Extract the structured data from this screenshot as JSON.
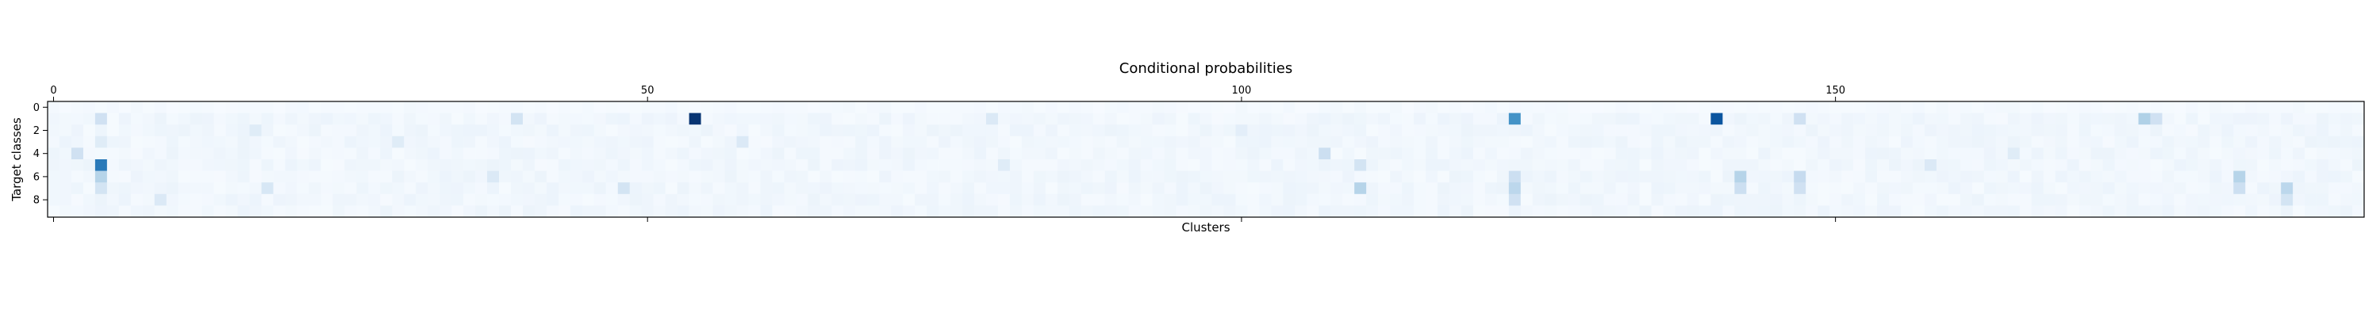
{
  "chart_data": {
    "type": "heatmap",
    "title": "Conditional probabilities",
    "xlabel": "Clusters",
    "ylabel": "Target classes",
    "n_rows": 10,
    "n_cols": 195,
    "x_ticks_top": [
      "0",
      "50",
      "100",
      "150"
    ],
    "x_tick_values": [
      0,
      50,
      100,
      150
    ],
    "y_ticks": [
      "0",
      "2",
      "4",
      "6",
      "8"
    ],
    "y_tick_values": [
      0,
      2,
      4,
      6,
      8
    ],
    "colormap": "Blues",
    "value_range": [
      0,
      1
    ],
    "grid": false,
    "base_value": 0.03,
    "highlights": [
      {
        "row": 1,
        "col": 54,
        "value": 0.98
      },
      {
        "row": 1,
        "col": 123,
        "value": 0.62
      },
      {
        "row": 1,
        "col": 140,
        "value": 0.86
      },
      {
        "row": 1,
        "col": 4,
        "value": 0.2
      },
      {
        "row": 1,
        "col": 39,
        "value": 0.18
      },
      {
        "row": 1,
        "col": 79,
        "value": 0.14
      },
      {
        "row": 1,
        "col": 147,
        "value": 0.2
      },
      {
        "row": 1,
        "col": 176,
        "value": 0.32
      },
      {
        "row": 1,
        "col": 177,
        "value": 0.2
      },
      {
        "row": 5,
        "col": 4,
        "value": 0.72
      },
      {
        "row": 6,
        "col": 4,
        "value": 0.3
      },
      {
        "row": 7,
        "col": 4,
        "value": 0.18
      },
      {
        "row": 4,
        "col": 2,
        "value": 0.2
      },
      {
        "row": 3,
        "col": 4,
        "value": 0.12
      },
      {
        "row": 4,
        "col": 107,
        "value": 0.22
      },
      {
        "row": 5,
        "col": 110,
        "value": 0.18
      },
      {
        "row": 7,
        "col": 110,
        "value": 0.3
      },
      {
        "row": 6,
        "col": 123,
        "value": 0.22
      },
      {
        "row": 7,
        "col": 123,
        "value": 0.28
      },
      {
        "row": 8,
        "col": 123,
        "value": 0.2
      },
      {
        "row": 6,
        "col": 142,
        "value": 0.3
      },
      {
        "row": 7,
        "col": 142,
        "value": 0.22
      },
      {
        "row": 6,
        "col": 147,
        "value": 0.25
      },
      {
        "row": 7,
        "col": 147,
        "value": 0.2
      },
      {
        "row": 6,
        "col": 184,
        "value": 0.3
      },
      {
        "row": 7,
        "col": 184,
        "value": 0.22
      },
      {
        "row": 7,
        "col": 188,
        "value": 0.28
      },
      {
        "row": 8,
        "col": 188,
        "value": 0.18
      },
      {
        "row": 3,
        "col": 58,
        "value": 0.14
      },
      {
        "row": 5,
        "col": 80,
        "value": 0.12
      },
      {
        "row": 2,
        "col": 100,
        "value": 0.1
      },
      {
        "row": 5,
        "col": 158,
        "value": 0.14
      },
      {
        "row": 4,
        "col": 165,
        "value": 0.12
      },
      {
        "row": 8,
        "col": 9,
        "value": 0.14
      },
      {
        "row": 7,
        "col": 18,
        "value": 0.16
      },
      {
        "row": 6,
        "col": 37,
        "value": 0.14
      },
      {
        "row": 7,
        "col": 48,
        "value": 0.18
      },
      {
        "row": 3,
        "col": 29,
        "value": 0.12
      },
      {
        "row": 2,
        "col": 17,
        "value": 0.12
      }
    ]
  }
}
